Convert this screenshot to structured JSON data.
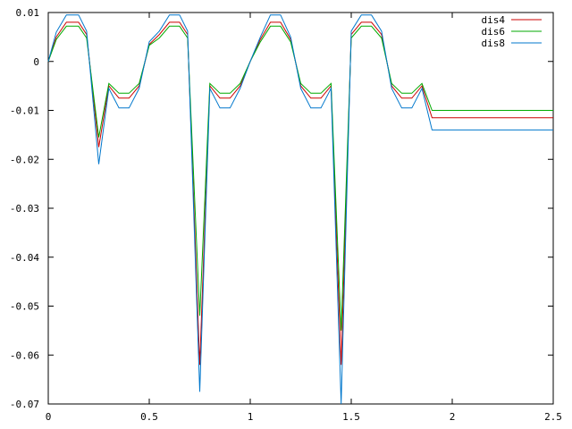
{
  "chart_data": {
    "type": "line",
    "title": "",
    "xlabel": "",
    "ylabel": "",
    "xlim": [
      0,
      2.5
    ],
    "ylim": [
      -0.07,
      0.01
    ],
    "x_ticks": [
      0,
      0.5,
      1,
      1.5,
      2,
      2.5
    ],
    "x_tick_labels": [
      "0",
      "0.5",
      "1",
      "1.5",
      "2",
      "2.5"
    ],
    "y_ticks": [
      0.01,
      0,
      -0.01,
      -0.02,
      -0.03,
      -0.04,
      -0.05,
      -0.06,
      -0.07
    ],
    "y_tick_labels": [
      "0.01",
      "0",
      "-0.01",
      "-0.02",
      "-0.03",
      "-0.04",
      "-0.05",
      "-0.06",
      "-0.07"
    ],
    "grid": false,
    "legend_position": "top-right",
    "x": [
      0,
      0.04,
      0.09,
      0.12,
      0.15,
      0.19,
      0.25,
      0.3,
      0.35,
      0.4,
      0.45,
      0.5,
      0.55,
      0.6,
      0.65,
      0.69,
      0.75,
      0.8,
      0.85,
      0.9,
      0.95,
      1.0,
      1.05,
      1.1,
      1.15,
      1.2,
      1.25,
      1.3,
      1.35,
      1.4,
      1.45,
      1.5,
      1.55,
      1.6,
      1.65,
      1.7,
      1.75,
      1.8,
      1.85,
      1.9,
      1.95,
      2.0,
      2.5
    ],
    "series": [
      {
        "name": "dis4",
        "color": "#cc0000",
        "values": [
          0,
          0.005,
          0.008,
          0.008,
          0.008,
          0.0055,
          -0.0175,
          -0.005,
          -0.0075,
          -0.0075,
          -0.005,
          0.0035,
          0.0055,
          0.008,
          0.008,
          0.0055,
          -0.062,
          -0.005,
          -0.0075,
          -0.0075,
          -0.005,
          0.0,
          0.0045,
          0.008,
          0.008,
          0.0045,
          -0.005,
          -0.0075,
          -0.0075,
          -0.005,
          -0.062,
          0.0055,
          0.008,
          0.008,
          0.0055,
          -0.005,
          -0.0075,
          -0.0075,
          -0.005,
          -0.0115,
          -0.0115,
          -0.0115,
          -0.0115
        ]
      },
      {
        "name": "dis6",
        "color": "#00aa00",
        "values": [
          0,
          0.0045,
          0.0072,
          0.0072,
          0.0072,
          0.0048,
          -0.0155,
          -0.0045,
          -0.0065,
          -0.0065,
          -0.0045,
          0.0033,
          0.0048,
          0.0072,
          0.0072,
          0.0048,
          -0.052,
          -0.0045,
          -0.0065,
          -0.0065,
          -0.0045,
          0.0,
          0.004,
          0.0072,
          0.0072,
          0.004,
          -0.0045,
          -0.0065,
          -0.0065,
          -0.0045,
          -0.055,
          0.0048,
          0.0072,
          0.0072,
          0.0048,
          -0.0045,
          -0.0065,
          -0.0065,
          -0.0045,
          -0.01,
          -0.01,
          -0.01,
          -0.01
        ]
      },
      {
        "name": "dis8",
        "color": "#0077cc",
        "values": [
          0,
          0.006,
          0.0095,
          0.0095,
          0.0095,
          0.0062,
          -0.021,
          -0.0055,
          -0.0095,
          -0.0095,
          -0.0055,
          0.004,
          0.0062,
          0.0095,
          0.0095,
          0.0062,
          -0.0675,
          -0.0055,
          -0.0095,
          -0.0095,
          -0.0055,
          0.0,
          0.005,
          0.0095,
          0.0095,
          0.005,
          -0.0055,
          -0.0095,
          -0.0095,
          -0.0055,
          -0.07,
          0.0062,
          0.0095,
          0.0095,
          0.0062,
          -0.0055,
          -0.0095,
          -0.0095,
          -0.0055,
          -0.014,
          -0.014,
          -0.014,
          -0.014
        ]
      }
    ]
  }
}
